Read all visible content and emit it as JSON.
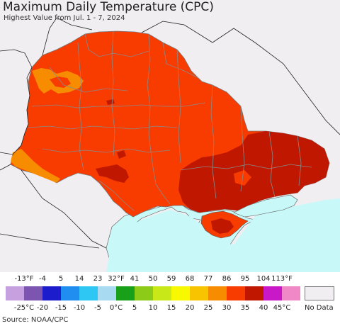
{
  "title": "Maximum Daily Temperature (CPC)",
  "subtitle": "Highest Value from Jul. 1 - 7, 2024",
  "source": "Source: NOAA/CPC",
  "legend": {
    "fahrenheit_labels": [
      "-13°F",
      "-4",
      "5",
      "14",
      "23",
      "32°F",
      "41",
      "50",
      "59",
      "68",
      "77",
      "86",
      "95",
      "104",
      "113°F"
    ],
    "celsius_labels": [
      "-25°C",
      "-20",
      "-15",
      "-10",
      "-5",
      "0°C",
      "5",
      "10",
      "15",
      "20",
      "25",
      "30",
      "35",
      "40",
      "45°C"
    ],
    "colors": [
      "#c7a0e0",
      "#7c55b0",
      "#1c1ccc",
      "#1f8ef0",
      "#2ec6f2",
      "#a8daf2",
      "#18a018",
      "#8ccc18",
      "#c8e818",
      "#f8f800",
      "#f8c400",
      "#f88c00",
      "#f83c00",
      "#c01800",
      "#c818c8",
      "#f088c8"
    ],
    "no_data_label": "No Data",
    "no_data_color": "#f1eef2"
  },
  "map": {
    "land_color": "#f83c00",
    "hot_color": "#c01800",
    "warm_color": "#f88c00",
    "sea_color": "#c8f8f8",
    "nodata_color": "#f1eef2"
  }
}
